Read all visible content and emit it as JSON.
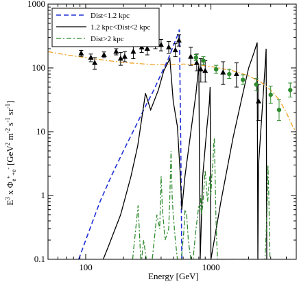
{
  "chart_data": {
    "type": "line",
    "title": "",
    "xlabel": "Energy [GeV]",
    "ylabel_main": "E",
    "ylabel_sup": "3",
    "ylabel_mid": " x Φ",
    "ylabel_sub": "e",
    "ylabel_subsup": "+",
    "ylabel_sub2": "+e",
    "ylabel_subsup2": "-",
    "ylabel_units": " [GeV",
    "ylabel_u1sup": "2",
    "ylabel_u2": " m",
    "ylabel_u2sup": "-2",
    "ylabel_u3": " s",
    "ylabel_u3sup": "-1",
    "ylabel_u4": " sr",
    "ylabel_u4sup": "-1",
    "ylabel_close": "]",
    "xscale": "log",
    "yscale": "log",
    "xlim": [
      50,
      4800
    ],
    "ylim": [
      0.1,
      1000
    ],
    "xticks": [
      {
        "value": 100,
        "label": "100"
      },
      {
        "value": 1000,
        "label": "1000"
      }
    ],
    "yticks": [
      {
        "value": 0.1,
        "label": "0.1"
      },
      {
        "value": 1,
        "label": "1"
      },
      {
        "value": 10,
        "label": "10"
      },
      {
        "value": 100,
        "label": "100"
      },
      {
        "value": 1000,
        "label": "1000"
      }
    ],
    "grid": false,
    "legend_position": "top-left",
    "series": [
      {
        "name": "Dist<1.2 kpc",
        "color": "#1f2fd6",
        "style": "dashed",
        "x": [
          88,
          100,
          130,
          160,
          200,
          250,
          300,
          350,
          400,
          450,
          500,
          540,
          560,
          575,
          585
        ],
        "y": [
          0.1,
          0.2,
          0.8,
          2.0,
          5.0,
          12,
          25,
          45,
          80,
          130,
          220,
          320,
          400,
          5,
          0.1
        ]
      },
      {
        "name": "1.2 kpc<Dist<2 kpc",
        "color": "#000000",
        "style": "solid",
        "x": [
          138,
          150,
          190,
          230,
          260,
          285,
          300,
          330,
          380,
          420,
          470,
          500,
          540,
          570,
          585,
          620,
          700,
          760,
          800,
          820,
          860,
          930,
          970,
          985,
          1000,
          1200,
          1500,
          1800,
          2000,
          2200,
          2340,
          2370,
          2400,
          2700,
          2760,
          2790
        ],
        "y": [
          0.1,
          0.15,
          0.5,
          2,
          6,
          20,
          40,
          22,
          45,
          90,
          140,
          30,
          12,
          2,
          0.6,
          2,
          12,
          40,
          110,
          0.1,
          2,
          12,
          28,
          50,
          0.1,
          0.8,
          8,
          40,
          100,
          170,
          250,
          0.1,
          3,
          100,
          200,
          0.1
        ]
      },
      {
        "name": "Dist>2 kpc",
        "color": "#2e8b2e",
        "style": "dashdot",
        "x": [
          237,
          262,
          275,
          280,
          290,
          305,
          340,
          370,
          390,
          400,
          410,
          430,
          460,
          470,
          480,
          490,
          500,
          520,
          540,
          580,
          610,
          620,
          640,
          660,
          690,
          720,
          760,
          800,
          820,
          830,
          840,
          860,
          900,
          940,
          980,
          1000,
          1015,
          1035,
          1050,
          1065,
          1080,
          1095,
          1110,
          1130,
          1160,
          2700,
          2800,
          2850,
          2900,
          2960
        ],
        "y": [
          0.1,
          0.7,
          0.1,
          0.1,
          0.2,
          0.1,
          0.1,
          0.5,
          0.3,
          2,
          0.6,
          0.2,
          0.3,
          1,
          5,
          1,
          0.5,
          0.2,
          0.1,
          0.1,
          0.3,
          0.6,
          0.5,
          0.2,
          0.1,
          0.1,
          0.3,
          0.7,
          0.6,
          1,
          0.5,
          0.7,
          2.5,
          0.8,
          2,
          1,
          2,
          3,
          6,
          8,
          2,
          0.5,
          0.2,
          0.1,
          0.1,
          0.1,
          0.5,
          3,
          1,
          0.1
        ]
      },
      {
        "name": "",
        "color": "#f0a020",
        "style": "dashdot",
        "x": [
          50,
          70,
          100,
          150,
          200,
          300,
          400,
          500,
          600,
          700,
          800,
          900,
          1000,
          1200,
          1500,
          2000,
          2500,
          3000,
          3500,
          4000,
          4500,
          4800
        ],
        "y": [
          180,
          160,
          145,
          130,
          122,
          115,
          112,
          112,
          115,
          114,
          112,
          108,
          105,
          98,
          90,
          75,
          60,
          45,
          32,
          20,
          12,
          10
        ]
      }
    ],
    "datasets": [
      {
        "marker": "triangle",
        "color": "#000000",
        "points": [
          {
            "x": 92,
            "y": 170,
            "yerr_lo": 152,
            "yerr_hi": 188
          },
          {
            "x": 110,
            "y": 145,
            "yerr_lo": 125,
            "yerr_hi": 165
          },
          {
            "x": 118,
            "y": 120,
            "yerr_lo": 95,
            "yerr_hi": 145
          },
          {
            "x": 140,
            "y": 160,
            "yerr_lo": 145,
            "yerr_hi": 178
          },
          {
            "x": 175,
            "y": 180,
            "yerr_lo": 160,
            "yerr_hi": 200
          },
          {
            "x": 190,
            "y": 140,
            "yerr_lo": 110,
            "yerr_hi": 175
          },
          {
            "x": 205,
            "y": 150,
            "yerr_lo": 125,
            "yerr_hi": 180
          },
          {
            "x": 240,
            "y": 180,
            "yerr_lo": 140,
            "yerr_hi": 230
          },
          {
            "x": 280,
            "y": 210,
            "yerr_lo": 175,
            "yerr_hi": 250
          },
          {
            "x": 310,
            "y": 200,
            "yerr_lo": 160,
            "yerr_hi": 240
          },
          {
            "x": 360,
            "y": 240,
            "yerr_lo": 200,
            "yerr_hi": 290
          },
          {
            "x": 400,
            "y": 230,
            "yerr_lo": 185,
            "yerr_hi": 280
          },
          {
            "x": 460,
            "y": 210,
            "yerr_lo": 170,
            "yerr_hi": 260
          },
          {
            "x": 520,
            "y": 190,
            "yerr_lo": 150,
            "yerr_hi": 240
          },
          {
            "x": 555,
            "y": 270,
            "yerr_lo": 220,
            "yerr_hi": 330
          },
          {
            "x": 690,
            "y": 150,
            "yerr_lo": 110,
            "yerr_hi": 210
          },
          {
            "x": 770,
            "y": 120,
            "yerr_lo": 90,
            "yerr_hi": 165
          },
          {
            "x": 830,
            "y": 95,
            "yerr_lo": 60,
            "yerr_hi": 140
          },
          {
            "x": 900,
            "y": 90,
            "yerr_lo": 60,
            "yerr_hi": 130
          },
          {
            "x": 1250,
            "y": 85,
            "yerr_lo": 55,
            "yerr_hi": 125
          },
          {
            "x": 1600,
            "y": 80,
            "yerr_lo": 50,
            "yerr_hi": 120
          },
          {
            "x": 2400,
            "y": 30,
            "yerr_lo": 15,
            "yerr_hi": 55
          }
        ]
      },
      {
        "marker": "circle",
        "color": "#2e8b2e",
        "points": [
          {
            "x": 760,
            "y": 145,
            "yerr_lo": 130,
            "yerr_hi": 162
          },
          {
            "x": 870,
            "y": 130,
            "yerr_lo": 112,
            "yerr_hi": 150
          },
          {
            "x": 1100,
            "y": 95,
            "yerr_lo": 82,
            "yerr_hi": 110
          },
          {
            "x": 1400,
            "y": 80,
            "yerr_lo": 68,
            "yerr_hi": 95
          },
          {
            "x": 1800,
            "y": 65,
            "yerr_lo": 55,
            "yerr_hi": 78
          },
          {
            "x": 2300,
            "y": 55,
            "yerr_lo": 44,
            "yerr_hi": 68
          },
          {
            "x": 3000,
            "y": 38,
            "yerr_lo": 28,
            "yerr_hi": 52
          },
          {
            "x": 3500,
            "y": 22,
            "yerr_lo": 15,
            "yerr_hi": 32
          },
          {
            "x": 4300,
            "y": 45,
            "yerr_lo": 35,
            "yerr_hi": 58
          }
        ]
      }
    ]
  }
}
